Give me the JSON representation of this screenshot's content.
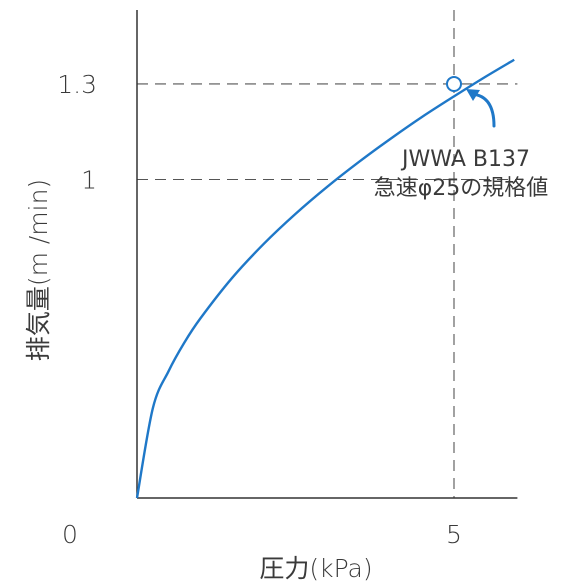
{
  "chart_data": {
    "type": "line",
    "xlabel": "圧力(kPa)",
    "ylabel": "排気量(m /min)",
    "x_ticks": [
      {
        "value": 0,
        "label": "0"
      },
      {
        "value": 5,
        "label": "5"
      }
    ],
    "y_ticks": [
      {
        "value": 1,
        "label": "1"
      },
      {
        "value": 1.3,
        "label": "1.3"
      }
    ],
    "xlim": [
      0,
      6
    ],
    "ylim": [
      0,
      1.55
    ],
    "grid": false,
    "reference_lines": [
      {
        "axis": "y",
        "value": 1.3,
        "style": "dashed"
      },
      {
        "axis": "y",
        "value": 1,
        "style": "dashed"
      },
      {
        "axis": "x",
        "value": 5,
        "style": "dashed"
      }
    ],
    "series": [
      {
        "x": [
          0,
          0.25,
          0.5,
          0.75,
          1,
          1.5,
          2,
          2.5,
          3,
          3.5,
          4,
          4.5,
          5,
          5.5,
          5.95
        ],
        "y": [
          0,
          0.282,
          0.399,
          0.489,
          0.564,
          0.691,
          0.798,
          0.892,
          0.977,
          1.055,
          1.128,
          1.197,
          1.261,
          1.323,
          1.376
        ],
        "color": "#1f78c8"
      }
    ],
    "points": [
      {
        "x": 5,
        "y": 1.3,
        "marker": "open-circle",
        "color": "#1f78c8"
      }
    ],
    "annotations": [
      {
        "lines": [
          "JWWA B137",
          "急速φ25の規格値"
        ],
        "points_to": {
          "x": 5,
          "y": 1.3
        },
        "arrow_color": "#1f78c8"
      }
    ]
  }
}
